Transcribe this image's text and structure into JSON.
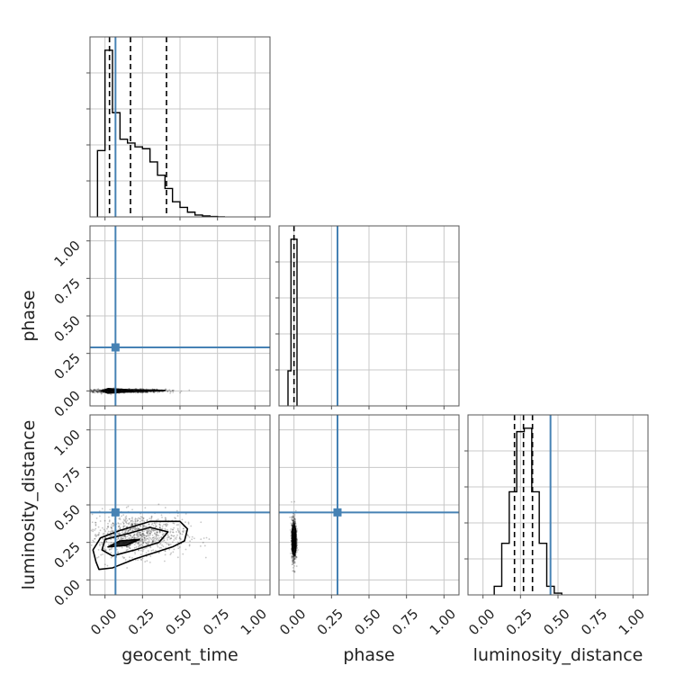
{
  "chart_data": {
    "type": "corner",
    "parameters": [
      "geocent_time",
      "phase",
      "luminosity_distance"
    ],
    "axis_labels": {
      "x": [
        "geocent_time",
        "phase",
        "luminosity_distance"
      ],
      "y": [
        "phase",
        "luminosity_distance"
      ]
    },
    "range": [
      -0.1,
      1.1
    ],
    "ticks": [
      0.0,
      0.25,
      0.5,
      0.75,
      1.0
    ],
    "tick_labels": [
      "0.00",
      "0.25",
      "0.50",
      "0.75",
      "1.00"
    ],
    "grid": true,
    "truths": {
      "geocent_time": 0.07,
      "phase": 0.29,
      "luminosity_distance": 0.45
    },
    "colors": {
      "truth": "#4682b4",
      "hist": "#000000",
      "quantile": "#000000",
      "grid": "#c8c8c8",
      "frame": "#555555"
    },
    "marginals": {
      "geocent_time": {
        "bins": [
          -0.05,
          0.0,
          0.05,
          0.1,
          0.15,
          0.2,
          0.25,
          0.3,
          0.35,
          0.4,
          0.45,
          0.5,
          0.55,
          0.6,
          0.65,
          0.7,
          0.75,
          0.8
        ],
        "counts": [
          0.35,
          0.88,
          0.55,
          0.41,
          0.39,
          0.37,
          0.36,
          0.29,
          0.22,
          0.15,
          0.08,
          0.05,
          0.025,
          0.01,
          0.005,
          0.002,
          0.0
        ],
        "quantiles": [
          0.03,
          0.17,
          0.41
        ]
      },
      "phase": {
        "bins": [
          -0.04,
          -0.02,
          0.0,
          0.02
        ],
        "counts": [
          0.2,
          0.95,
          0.95
        ],
        "quantiles": [
          0.0
        ]
      },
      "luminosity_distance": {
        "bins": [
          0.075,
          0.125,
          0.175,
          0.225,
          0.275,
          0.325,
          0.375,
          0.425,
          0.475,
          0.525
        ],
        "counts": [
          0.05,
          0.3,
          0.6,
          0.95,
          0.97,
          0.6,
          0.3,
          0.05,
          0.01
        ],
        "quantiles": [
          0.21,
          0.27,
          0.33
        ]
      }
    },
    "contours": [
      {
        "x_param": "geocent_time",
        "y_param": "phase",
        "samples_center": [
          0.12,
          0.0
        ],
        "samples_spread": [
          0.14,
          0.006
        ],
        "levels": [
          [
            [
              -0.02,
              0.0
            ],
            [
              0.02,
              0.015
            ],
            [
              0.15,
              0.008
            ],
            [
              0.4,
              0.003
            ],
            [
              0.15,
              -0.006
            ],
            [
              0.02,
              -0.015
            ]
          ],
          [
            [
              0.0,
              0.0
            ],
            [
              0.03,
              0.007
            ],
            [
              0.1,
              0.003
            ],
            [
              0.03,
              -0.006
            ]
          ]
        ]
      },
      {
        "x_param": "geocent_time",
        "y_param": "luminosity_distance",
        "samples_center": [
          0.22,
          0.3
        ],
        "samples_spread": [
          0.16,
          0.07
        ],
        "levels": [
          [
            [
              -0.06,
              0.12
            ],
            [
              -0.08,
              0.2
            ],
            [
              -0.03,
              0.28
            ],
            [
              0.1,
              0.33
            ],
            [
              0.3,
              0.39
            ],
            [
              0.5,
              0.39
            ],
            [
              0.55,
              0.34
            ],
            [
              0.53,
              0.26
            ],
            [
              0.45,
              0.22
            ],
            [
              0.2,
              0.14
            ],
            [
              0.05,
              0.08
            ],
            [
              -0.04,
              0.07
            ]
          ],
          [
            [
              -0.02,
              0.2
            ],
            [
              0.0,
              0.27
            ],
            [
              0.12,
              0.3
            ],
            [
              0.3,
              0.35
            ],
            [
              0.42,
              0.32
            ],
            [
              0.36,
              0.25
            ],
            [
              0.2,
              0.2
            ],
            [
              0.05,
              0.16
            ]
          ],
          [
            [
              0.02,
              0.22
            ],
            [
              0.1,
              0.26
            ],
            [
              0.23,
              0.27
            ],
            [
              0.14,
              0.23
            ]
          ]
        ]
      },
      {
        "x_param": "phase",
        "y_param": "luminosity_distance",
        "samples_center": [
          0.0,
          0.27
        ],
        "samples_spread": [
          0.008,
          0.07
        ],
        "levels": [
          [
            [
              -0.012,
              0.2
            ],
            [
              -0.012,
              0.33
            ],
            [
              0.0,
              0.37
            ],
            [
              0.012,
              0.33
            ],
            [
              0.012,
              0.2
            ],
            [
              0.0,
              0.16
            ]
          ],
          [
            [
              -0.006,
              0.23
            ],
            [
              -0.006,
              0.3
            ],
            [
              0.006,
              0.3
            ],
            [
              0.006,
              0.23
            ]
          ]
        ]
      }
    ]
  }
}
